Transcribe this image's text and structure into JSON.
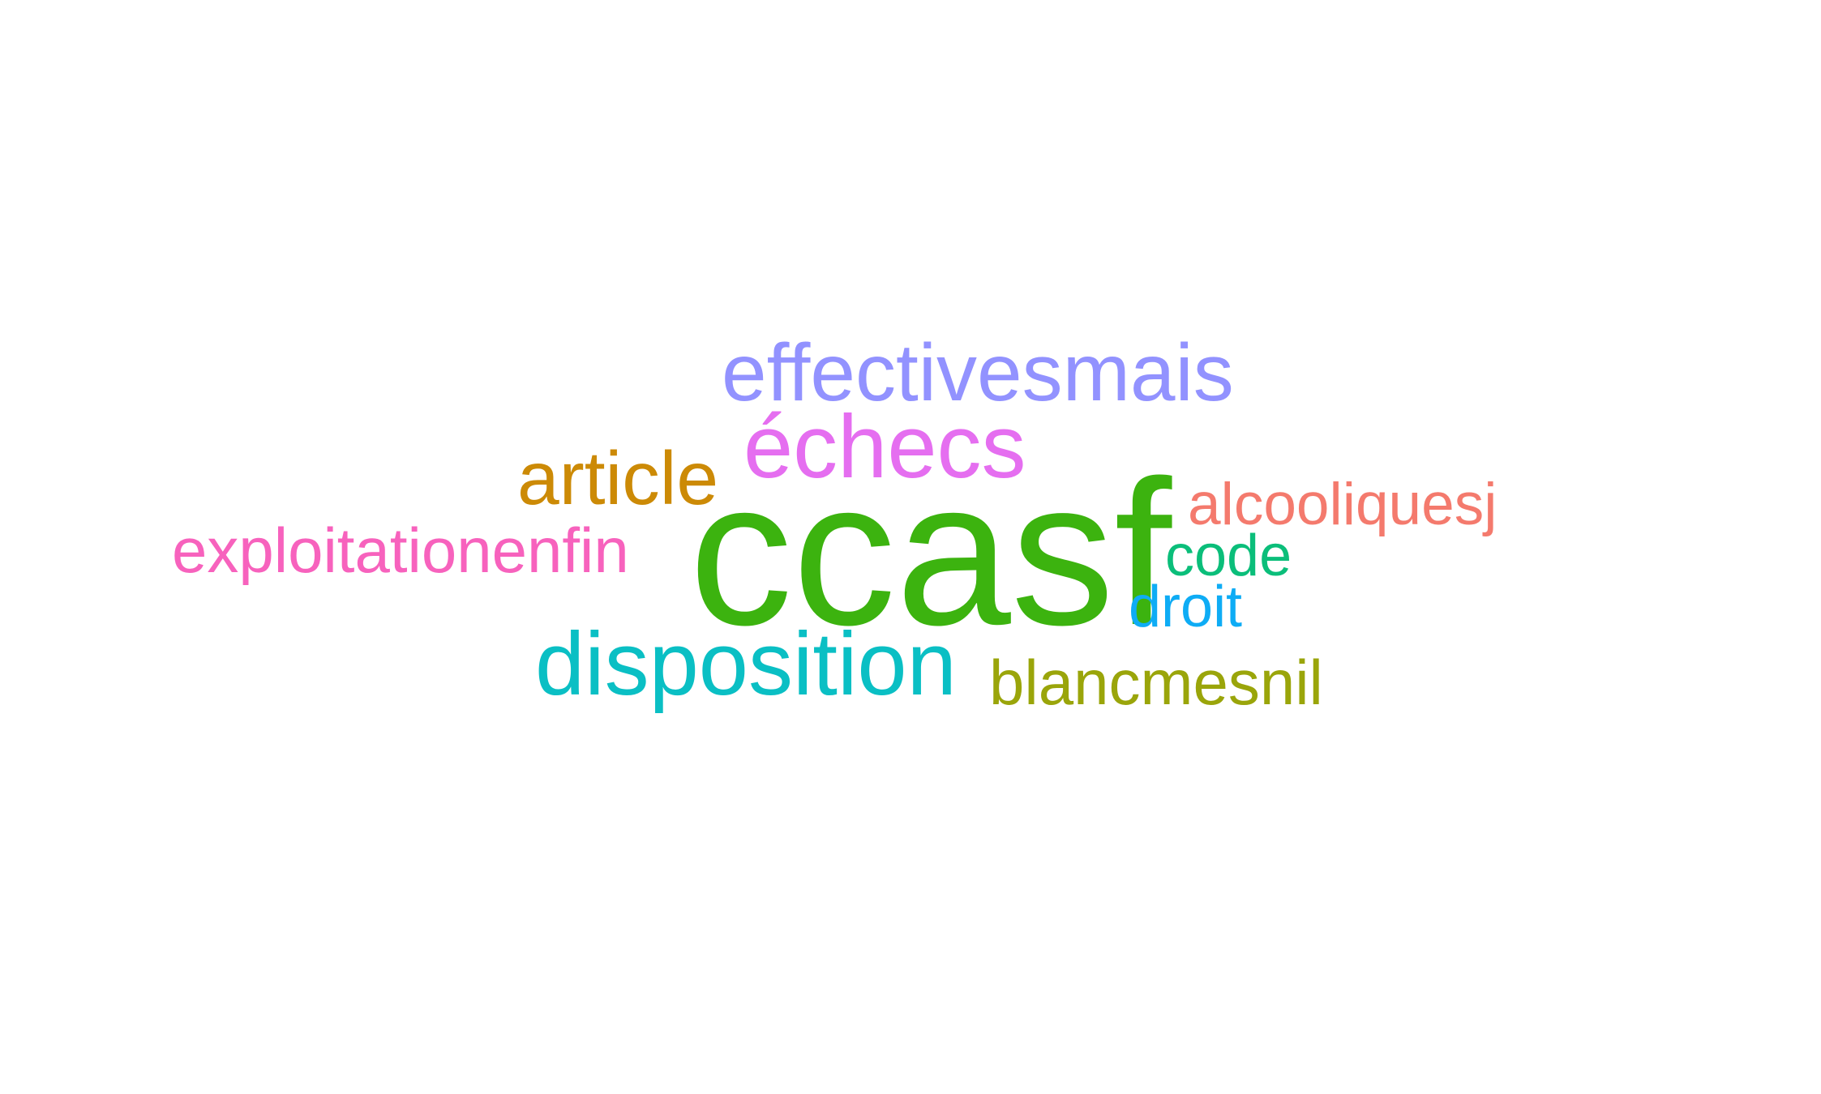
{
  "wordcloud": {
    "words": [
      {
        "text": "ccasf",
        "color": "#3cb30f"
      },
      {
        "text": "effectivesmais",
        "color": "#9292ff"
      },
      {
        "text": "échecs",
        "color": "#e56ef0"
      },
      {
        "text": "article",
        "color": "#cc8a06"
      },
      {
        "text": "alcooliquesj",
        "color": "#f47a6d"
      },
      {
        "text": "exploitationenfin",
        "color": "#f762bd"
      },
      {
        "text": "code",
        "color": "#0bbe7a"
      },
      {
        "text": "droit",
        "color": "#0eacf5"
      },
      {
        "text": "disposition",
        "color": "#0abfc4"
      },
      {
        "text": "blancmesnil",
        "color": "#9aa50a"
      }
    ]
  }
}
